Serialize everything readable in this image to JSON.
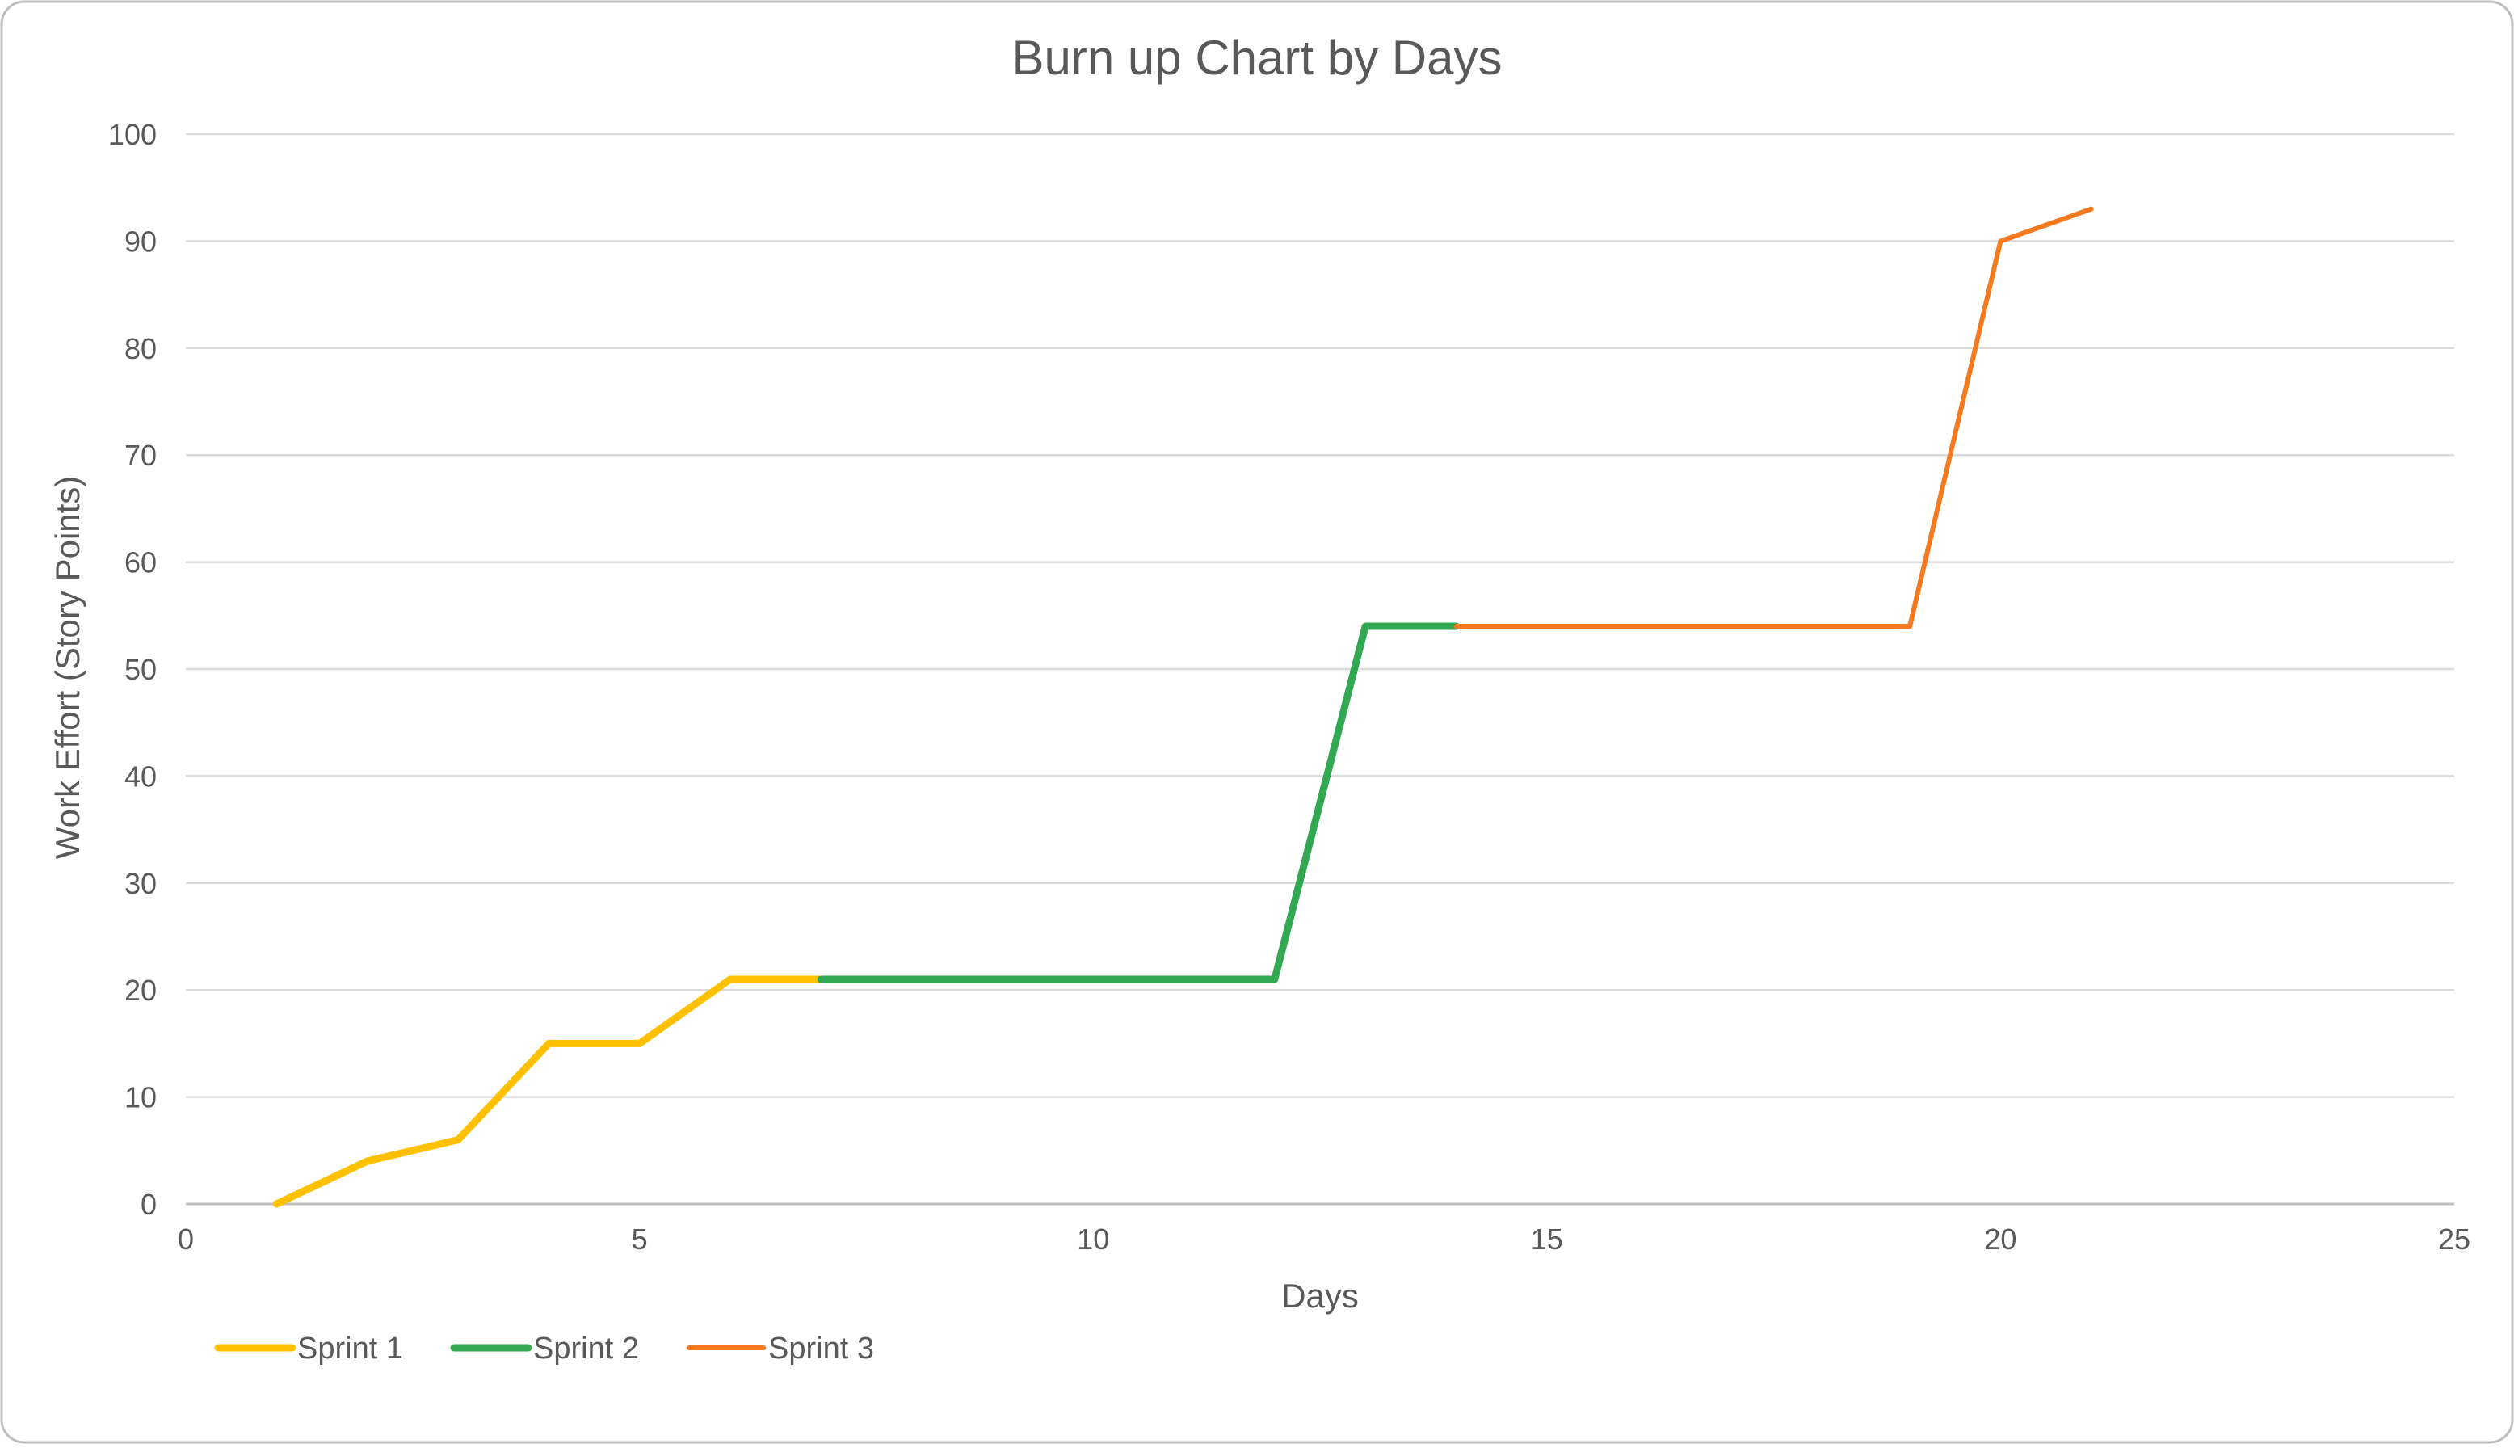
{
  "chart_data": {
    "type": "line",
    "title": "Burn up Chart by Days",
    "xlabel": "Days",
    "ylabel": "Work Effort (Story Points)",
    "xlim": [
      0,
      25
    ],
    "ylim": [
      0,
      100
    ],
    "x_ticks": [
      0,
      5,
      10,
      15,
      20,
      25
    ],
    "y_ticks": [
      0,
      10,
      20,
      30,
      40,
      50,
      60,
      70,
      80,
      90,
      100
    ],
    "grid": true,
    "legend_position": "bottom-left",
    "series": [
      {
        "name": "Sprint 1",
        "color": "#FFC000",
        "x": [
          1,
          2,
          3,
          4,
          5,
          6,
          7
        ],
        "y": [
          0,
          4,
          6,
          15,
          15,
          21,
          21
        ]
      },
      {
        "name": "Sprint 2",
        "color": "#33A852",
        "x": [
          7,
          8,
          9,
          10,
          11,
          12,
          13,
          14
        ],
        "y": [
          21,
          21,
          21,
          21,
          21,
          21,
          54,
          54
        ]
      },
      {
        "name": "Sprint 3",
        "color": "#F57A1F",
        "x": [
          14,
          15,
          16,
          17,
          18,
          19,
          20,
          21
        ],
        "y": [
          54,
          54,
          54,
          54,
          54,
          54,
          90,
          93
        ]
      }
    ]
  }
}
